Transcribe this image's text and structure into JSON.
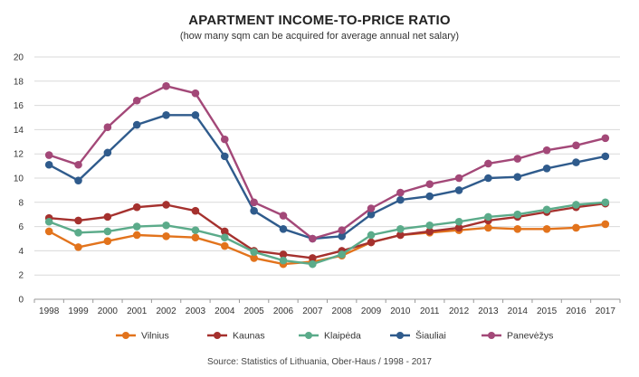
{
  "chart_data": {
    "type": "line",
    "title": "APARTMENT INCOME-TO-PRICE RATIO",
    "subtitle": "(how many sqm can be acquired for average annual net salary)",
    "source": "Source: Statistics of Lithuania, Ober-Haus / 1998 - 2017",
    "x": [
      "1998",
      "1999",
      "2000",
      "2001",
      "2002",
      "2003",
      "2004",
      "2005",
      "2006",
      "2007",
      "2008",
      "2009",
      "2010",
      "2011",
      "2012",
      "2013",
      "2014",
      "2015",
      "2016",
      "2017"
    ],
    "ylim": [
      0,
      20
    ],
    "yticks": [
      "0",
      "2",
      "4",
      "6",
      "8",
      "10",
      "12",
      "14",
      "16",
      "18",
      "20"
    ],
    "grid": true,
    "legend_position": "bottom",
    "series": [
      {
        "name": "Vilnius",
        "color": "#E2731C",
        "values": [
          5.6,
          4.3,
          4.8,
          5.3,
          5.2,
          5.1,
          4.4,
          3.4,
          2.9,
          3.1,
          3.6,
          4.7,
          5.3,
          5.5,
          5.7,
          5.9,
          5.8,
          5.8,
          5.9,
          6.2
        ]
      },
      {
        "name": "Kaunas",
        "color": "#A5312E",
        "values": [
          6.7,
          6.5,
          6.8,
          7.6,
          7.8,
          7.3,
          5.6,
          4.0,
          3.7,
          3.4,
          4.0,
          4.7,
          5.3,
          5.6,
          5.9,
          6.5,
          6.8,
          7.2,
          7.6,
          7.9
        ]
      },
      {
        "name": "Klaipėda",
        "color": "#5BAB8A",
        "values": [
          6.4,
          5.5,
          5.6,
          6.0,
          6.1,
          5.7,
          5.1,
          3.9,
          3.2,
          2.9,
          3.7,
          5.3,
          5.8,
          6.1,
          6.4,
          6.8,
          7.0,
          7.4,
          7.8,
          8.0
        ]
      },
      {
        "name": "Šiauliai",
        "color": "#2F5B8C",
        "values": [
          11.1,
          9.8,
          12.1,
          14.4,
          15.2,
          15.2,
          11.8,
          7.3,
          5.8,
          5.0,
          5.2,
          7.0,
          8.2,
          8.5,
          9.0,
          10.0,
          10.1,
          10.8,
          11.3,
          11.8
        ]
      },
      {
        "name": "Panevėžys",
        "color": "#A34878",
        "values": [
          11.9,
          11.1,
          14.2,
          16.4,
          17.6,
          17.0,
          13.2,
          8.0,
          6.9,
          5.0,
          5.7,
          7.5,
          8.8,
          9.5,
          10.0,
          11.2,
          11.6,
          12.3,
          12.7,
          13.3
        ]
      }
    ]
  }
}
